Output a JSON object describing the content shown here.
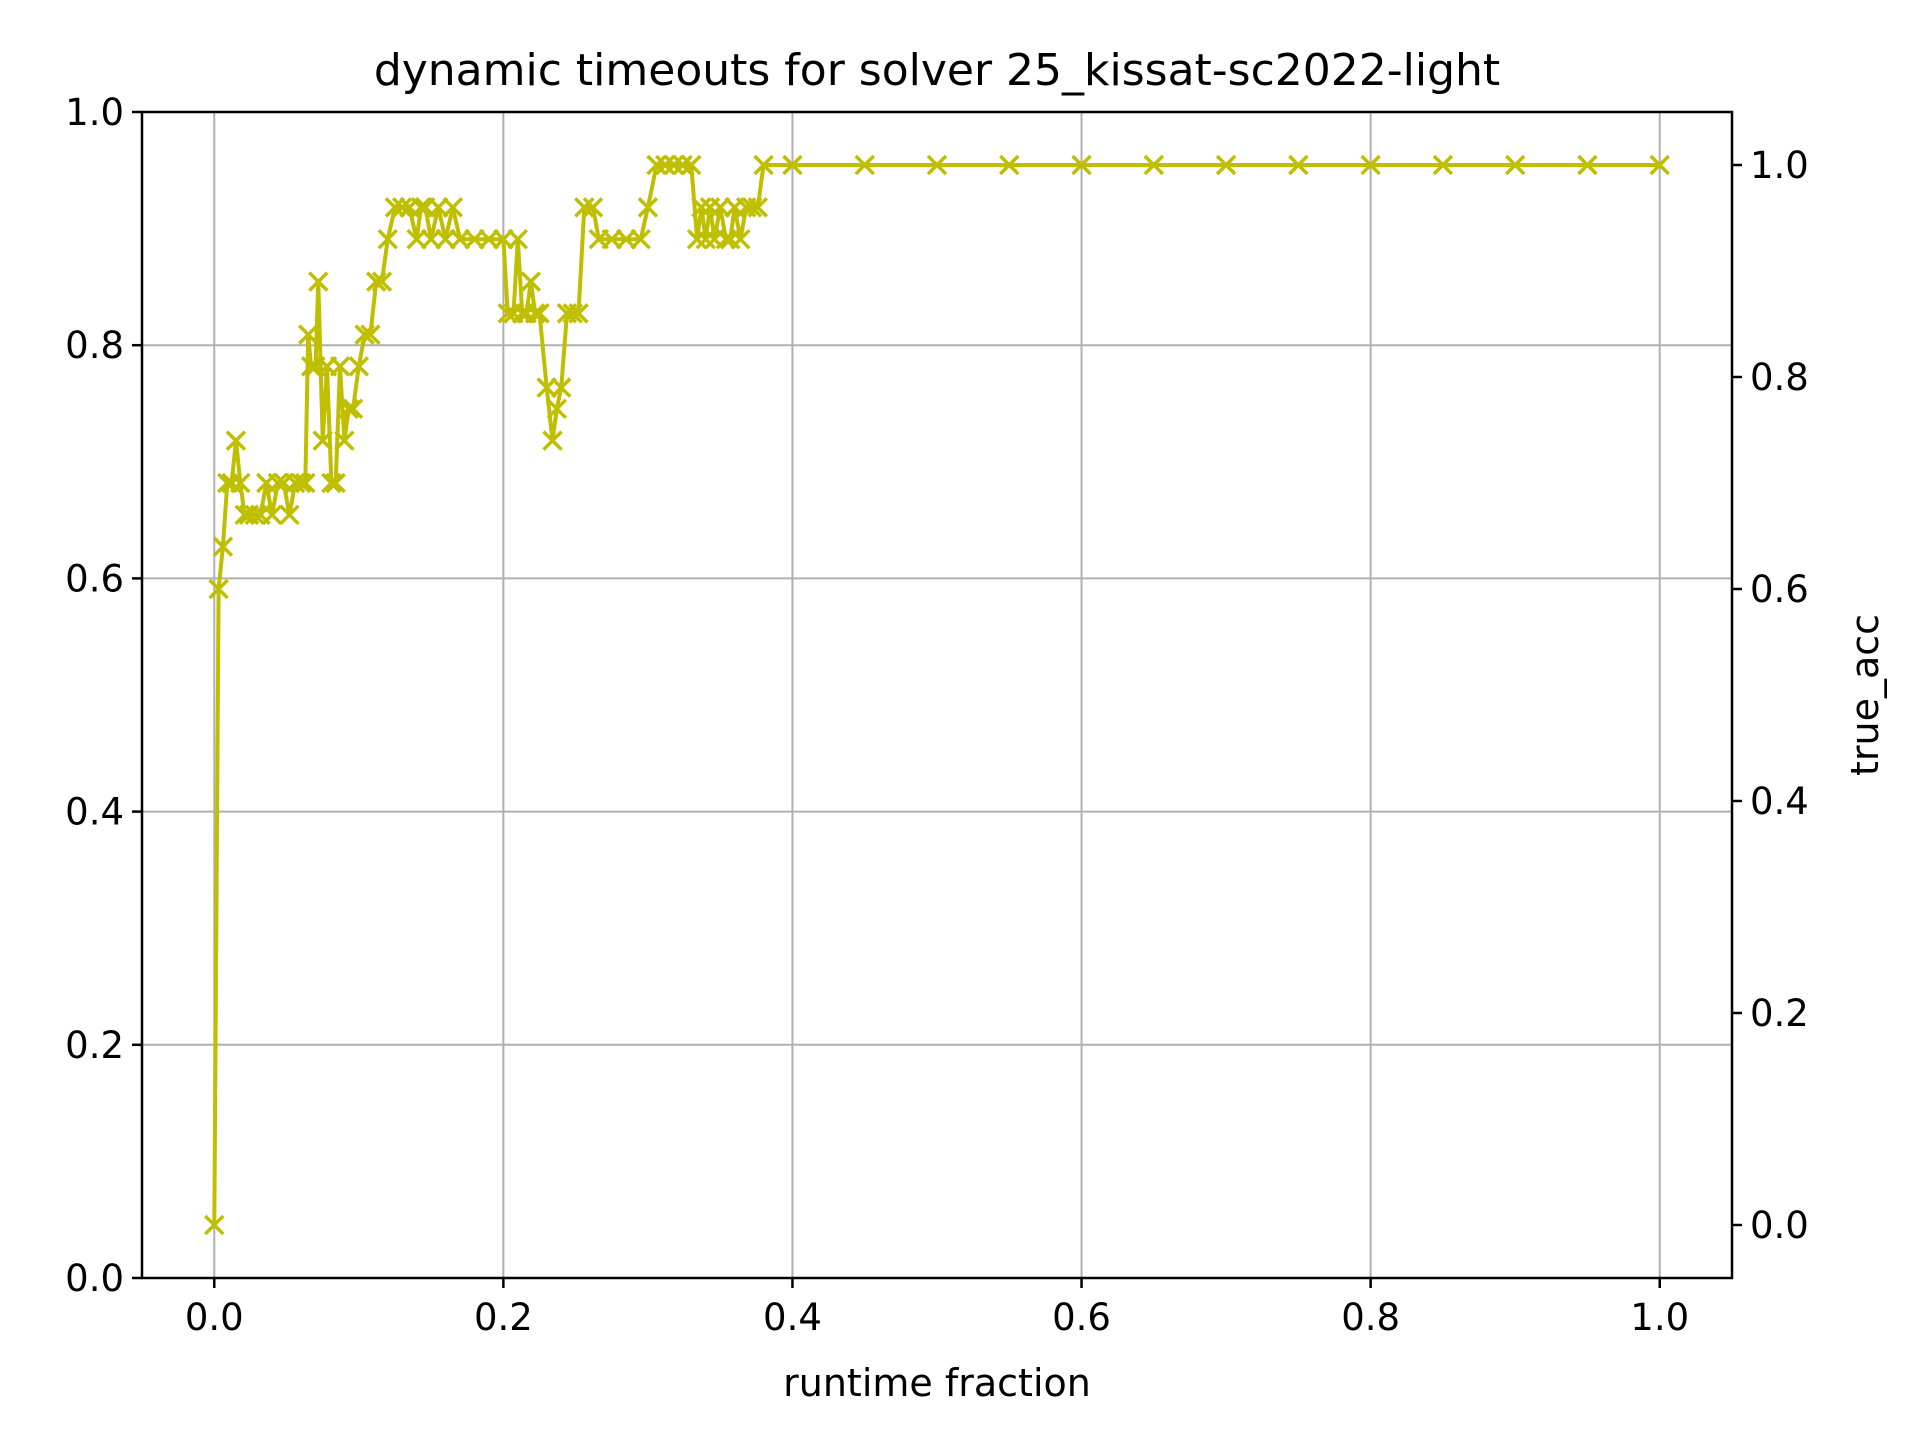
{
  "chart_data": {
    "type": "line",
    "title": "dynamic timeouts for solver 25_kissat-sc2022-light",
    "xlabel": "runtime fraction",
    "ylabel": "",
    "y2label": "true_acc",
    "y2label_color": "#ff0000",
    "xlim": [
      -0.05,
      1.05
    ],
    "ylim": [
      0.0,
      1.0
    ],
    "y2lim": [
      -0.05,
      1.05
    ],
    "xticks": [
      "0.0",
      "0.2",
      "0.4",
      "0.6",
      "0.8",
      "1.0"
    ],
    "yticks": [
      "0.0",
      "0.2",
      "0.4",
      "0.6",
      "0.8",
      "1.0"
    ],
    "y2ticks": [
      "0.0",
      "0.2",
      "0.4",
      "0.6",
      "0.8",
      "1.0"
    ],
    "grid": true,
    "series": [
      {
        "axis": "right",
        "color": "#bfbf00",
        "marker": "x",
        "points": [
          [
            0.0,
            0.0
          ],
          [
            0.003,
            0.6
          ],
          [
            0.006,
            0.64
          ],
          [
            0.009,
            0.7
          ],
          [
            0.012,
            0.7
          ],
          [
            0.015,
            0.74
          ],
          [
            0.018,
            0.7
          ],
          [
            0.021,
            0.67
          ],
          [
            0.024,
            0.67
          ],
          [
            0.028,
            0.67
          ],
          [
            0.032,
            0.67
          ],
          [
            0.036,
            0.7
          ],
          [
            0.04,
            0.67
          ],
          [
            0.044,
            0.7
          ],
          [
            0.048,
            0.7
          ],
          [
            0.052,
            0.67
          ],
          [
            0.056,
            0.7
          ],
          [
            0.06,
            0.7
          ],
          [
            0.063,
            0.7
          ],
          [
            0.065,
            0.84
          ],
          [
            0.067,
            0.81
          ],
          [
            0.07,
            0.81
          ],
          [
            0.072,
            0.89
          ],
          [
            0.075,
            0.74
          ],
          [
            0.078,
            0.81
          ],
          [
            0.081,
            0.7
          ],
          [
            0.084,
            0.7
          ],
          [
            0.087,
            0.81
          ],
          [
            0.09,
            0.74
          ],
          [
            0.093,
            0.77
          ],
          [
            0.096,
            0.77
          ],
          [
            0.1,
            0.81
          ],
          [
            0.104,
            0.84
          ],
          [
            0.108,
            0.84
          ],
          [
            0.112,
            0.89
          ],
          [
            0.116,
            0.89
          ],
          [
            0.12,
            0.93
          ],
          [
            0.125,
            0.96
          ],
          [
            0.13,
            0.96
          ],
          [
            0.135,
            0.96
          ],
          [
            0.14,
            0.93
          ],
          [
            0.143,
            0.96
          ],
          [
            0.146,
            0.96
          ],
          [
            0.15,
            0.93
          ],
          [
            0.155,
            0.96
          ],
          [
            0.16,
            0.93
          ],
          [
            0.165,
            0.96
          ],
          [
            0.17,
            0.93
          ],
          [
            0.18,
            0.93
          ],
          [
            0.19,
            0.93
          ],
          [
            0.2,
            0.93
          ],
          [
            0.203,
            0.86
          ],
          [
            0.207,
            0.86
          ],
          [
            0.21,
            0.93
          ],
          [
            0.213,
            0.86
          ],
          [
            0.216,
            0.86
          ],
          [
            0.219,
            0.89
          ],
          [
            0.222,
            0.86
          ],
          [
            0.225,
            0.86
          ],
          [
            0.23,
            0.79
          ],
          [
            0.234,
            0.74
          ],
          [
            0.237,
            0.77
          ],
          [
            0.24,
            0.79
          ],
          [
            0.244,
            0.86
          ],
          [
            0.248,
            0.86
          ],
          [
            0.252,
            0.86
          ],
          [
            0.256,
            0.96
          ],
          [
            0.262,
            0.96
          ],
          [
            0.266,
            0.93
          ],
          [
            0.275,
            0.93
          ],
          [
            0.285,
            0.93
          ],
          [
            0.295,
            0.93
          ],
          [
            0.3,
            0.96
          ],
          [
            0.306,
            1.0
          ],
          [
            0.312,
            1.0
          ],
          [
            0.318,
            1.0
          ],
          [
            0.324,
            1.0
          ],
          [
            0.33,
            1.0
          ],
          [
            0.334,
            0.93
          ],
          [
            0.337,
            0.96
          ],
          [
            0.34,
            0.93
          ],
          [
            0.343,
            0.96
          ],
          [
            0.346,
            0.93
          ],
          [
            0.35,
            0.96
          ],
          [
            0.354,
            0.93
          ],
          [
            0.357,
            0.93
          ],
          [
            0.36,
            0.96
          ],
          [
            0.364,
            0.93
          ],
          [
            0.368,
            0.96
          ],
          [
            0.372,
            0.96
          ],
          [
            0.376,
            0.96
          ],
          [
            0.38,
            1.0
          ],
          [
            0.4,
            1.0
          ],
          [
            0.45,
            1.0
          ],
          [
            0.5,
            1.0
          ],
          [
            0.55,
            1.0
          ],
          [
            0.6,
            1.0
          ],
          [
            0.65,
            1.0
          ],
          [
            0.7,
            1.0
          ],
          [
            0.75,
            1.0
          ],
          [
            0.8,
            1.0
          ],
          [
            0.85,
            1.0
          ],
          [
            0.9,
            1.0
          ],
          [
            0.95,
            1.0
          ],
          [
            1.0,
            1.0
          ]
        ]
      }
    ]
  }
}
